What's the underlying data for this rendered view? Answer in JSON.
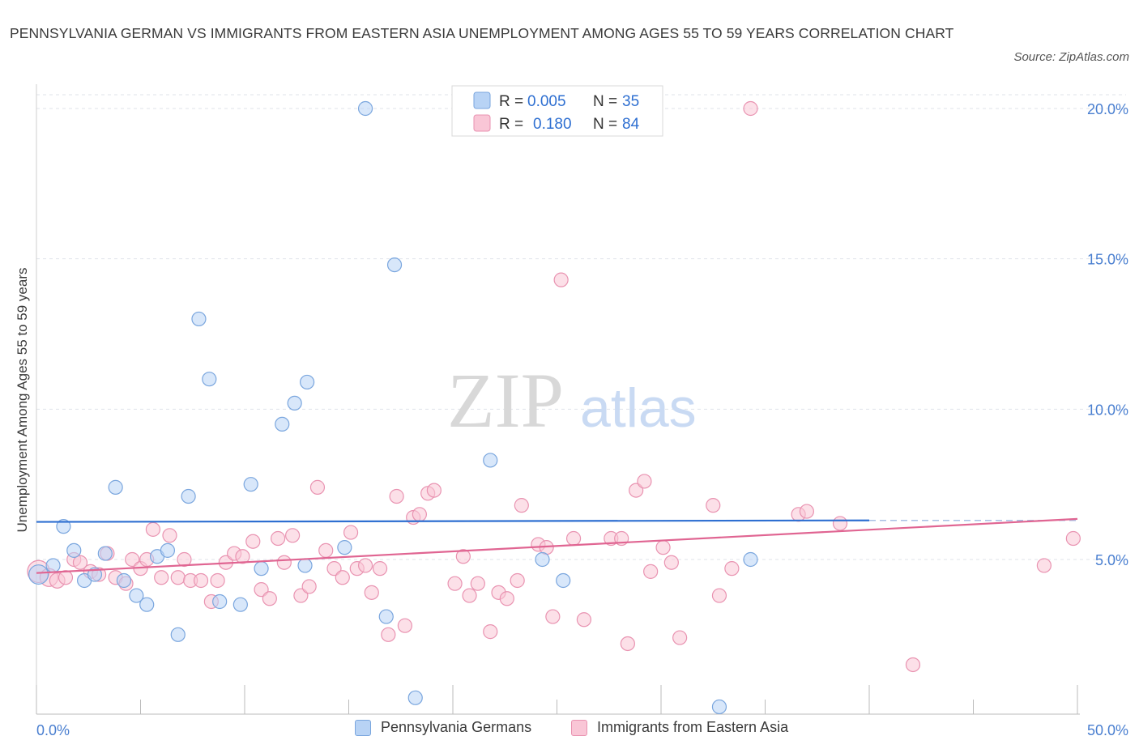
{
  "title": "PENNSYLVANIA GERMAN VS IMMIGRANTS FROM EASTERN ASIA UNEMPLOYMENT AMONG AGES 55 TO 59 YEARS CORRELATION CHART",
  "source": "Source: ZipAtlas.com",
  "watermark": {
    "zip": "ZIP",
    "atlas": "atlas"
  },
  "colors": {
    "blue_fill": "#b8d3f5",
    "blue_stroke": "#7aa6de",
    "blue_line": "#2e6fd1",
    "pink_fill": "#f9c6d6",
    "pink_stroke": "#e993b1",
    "pink_line": "#e06592",
    "tick_label": "#4a7fd0",
    "grid": "#dfe3ea"
  },
  "legend_box": {
    "rows": [
      {
        "r_label": "R =",
        "r_value": "0.005",
        "n_label": "N =",
        "n_value": "35"
      },
      {
        "r_label": "R =",
        "r_value": "0.180",
        "n_label": "N =",
        "n_value": "84"
      }
    ]
  },
  "bottom_legend": {
    "blue": "Pennsylvania Germans",
    "pink": "Immigrants from Eastern Asia"
  },
  "chart_data": {
    "type": "scatter",
    "title": "PENNSYLVANIA GERMAN VS IMMIGRANTS FROM EASTERN ASIA UNEMPLOYMENT AMONG AGES 55 TO 59 YEARS CORRELATION CHART",
    "xlabel": "",
    "ylabel": "Unemployment Among Ages 55 to 59 years",
    "xlim": [
      0,
      50
    ],
    "ylim": [
      0,
      20.5
    ],
    "x_tick_labels": [
      "0.0%",
      "50.0%"
    ],
    "y_ticks": [
      5,
      10,
      15,
      20
    ],
    "y_tick_labels": [
      "5.0%",
      "10.0%",
      "15.0%",
      "20.0%"
    ],
    "series": [
      {
        "name": "Pennsylvania Germans",
        "color": "blue",
        "R": 0.005,
        "N": 35,
        "trend": {
          "x_start": 0,
          "y_start": 6.25,
          "x_end": 40,
          "y_end": 6.3,
          "dashed_to_x": 50
        },
        "points": [
          [
            0.1,
            4.5,
            1.4
          ],
          [
            0.8,
            4.8,
            1
          ],
          [
            1.3,
            6.1,
            1
          ],
          [
            1.8,
            5.3,
            1
          ],
          [
            2.3,
            4.3,
            1
          ],
          [
            2.8,
            4.5,
            1
          ],
          [
            3.3,
            5.2,
            1
          ],
          [
            3.8,
            7.4,
            1
          ],
          [
            4.2,
            4.3,
            1
          ],
          [
            4.8,
            3.8,
            1
          ],
          [
            5.3,
            3.5,
            1
          ],
          [
            5.8,
            5.1,
            1
          ],
          [
            6.3,
            5.3,
            1
          ],
          [
            6.8,
            2.5,
            1
          ],
          [
            7.3,
            7.1,
            1
          ],
          [
            7.8,
            13.0,
            1
          ],
          [
            8.3,
            11.0,
            1
          ],
          [
            8.8,
            3.6,
            1
          ],
          [
            9.8,
            3.5,
            1
          ],
          [
            10.3,
            7.5,
            1
          ],
          [
            10.8,
            4.7,
            1
          ],
          [
            11.8,
            9.5,
            1
          ],
          [
            12.4,
            10.2,
            1
          ],
          [
            12.9,
            4.8,
            1
          ],
          [
            13.0,
            10.9,
            1
          ],
          [
            14.8,
            5.4,
            1
          ],
          [
            15.8,
            20.0,
            1
          ],
          [
            16.8,
            3.1,
            1
          ],
          [
            17.2,
            14.8,
            1
          ],
          [
            18.2,
            0.4,
            1
          ],
          [
            21.8,
            8.3,
            1
          ],
          [
            24.3,
            5.0,
            1
          ],
          [
            25.3,
            4.3,
            1
          ],
          [
            32.8,
            0.1,
            1
          ],
          [
            34.3,
            5.0,
            1
          ]
        ]
      },
      {
        "name": "Immigrants from Eastern Asia",
        "color": "pink",
        "R": 0.18,
        "N": 84,
        "trend": {
          "x_start": 0,
          "y_start": 4.55,
          "x_end": 50,
          "y_end": 6.35
        },
        "points": [
          [
            0.1,
            4.6,
            1.6
          ],
          [
            0.6,
            4.4,
            1.3
          ],
          [
            1.0,
            4.3,
            1.1
          ],
          [
            1.4,
            4.4,
            1
          ],
          [
            1.8,
            5.0,
            1
          ],
          [
            2.1,
            4.9,
            1
          ],
          [
            2.6,
            4.6,
            1
          ],
          [
            3.0,
            4.5,
            1
          ],
          [
            3.4,
            5.2,
            1
          ],
          [
            3.8,
            4.4,
            1
          ],
          [
            4.3,
            4.2,
            1
          ],
          [
            4.6,
            5.0,
            1
          ],
          [
            5.0,
            4.7,
            1
          ],
          [
            5.3,
            5.0,
            1
          ],
          [
            5.6,
            6.0,
            1
          ],
          [
            6.0,
            4.4,
            1
          ],
          [
            6.4,
            5.8,
            1
          ],
          [
            6.8,
            4.4,
            1
          ],
          [
            7.1,
            5.0,
            1
          ],
          [
            7.4,
            4.3,
            1
          ],
          [
            7.9,
            4.3,
            1
          ],
          [
            8.4,
            3.6,
            1
          ],
          [
            8.7,
            4.3,
            1
          ],
          [
            9.1,
            4.9,
            1
          ],
          [
            9.5,
            5.2,
            1
          ],
          [
            9.9,
            5.1,
            1
          ],
          [
            10.4,
            5.6,
            1
          ],
          [
            10.8,
            4.0,
            1
          ],
          [
            11.2,
            3.7,
            1
          ],
          [
            11.6,
            5.7,
            1
          ],
          [
            11.9,
            4.9,
            1
          ],
          [
            12.3,
            5.8,
            1
          ],
          [
            12.7,
            3.8,
            1
          ],
          [
            13.1,
            4.1,
            1
          ],
          [
            13.5,
            7.4,
            1
          ],
          [
            13.9,
            5.3,
            1
          ],
          [
            14.3,
            4.7,
            1
          ],
          [
            14.7,
            4.4,
            1
          ],
          [
            15.1,
            5.9,
            1
          ],
          [
            15.4,
            4.7,
            1
          ],
          [
            15.8,
            4.8,
            1
          ],
          [
            16.1,
            3.9,
            1
          ],
          [
            16.5,
            4.7,
            1
          ],
          [
            16.9,
            2.5,
            1
          ],
          [
            17.3,
            7.1,
            1
          ],
          [
            17.7,
            2.8,
            1
          ],
          [
            18.1,
            6.4,
            1
          ],
          [
            18.4,
            6.5,
            1
          ],
          [
            18.8,
            7.2,
            1
          ],
          [
            19.1,
            7.3,
            1
          ],
          [
            20.1,
            4.2,
            1
          ],
          [
            20.5,
            5.1,
            1
          ],
          [
            20.8,
            3.8,
            1
          ],
          [
            21.2,
            4.2,
            1
          ],
          [
            21.8,
            2.6,
            1
          ],
          [
            22.2,
            3.9,
            1
          ],
          [
            22.6,
            3.7,
            1
          ],
          [
            23.1,
            4.3,
            1
          ],
          [
            23.3,
            6.8,
            1
          ],
          [
            24.1,
            5.5,
            1
          ],
          [
            24.5,
            5.4,
            1
          ],
          [
            24.8,
            3.1,
            1
          ],
          [
            25.2,
            14.3,
            1
          ],
          [
            25.8,
            5.7,
            1
          ],
          [
            26.3,
            3.0,
            1
          ],
          [
            27.6,
            5.7,
            1
          ],
          [
            28.1,
            5.7,
            1
          ],
          [
            28.4,
            2.2,
            1
          ],
          [
            28.8,
            7.3,
            1
          ],
          [
            29.2,
            7.6,
            1
          ],
          [
            29.5,
            4.6,
            1
          ],
          [
            30.1,
            5.4,
            1
          ],
          [
            30.5,
            4.9,
            1
          ],
          [
            30.9,
            2.4,
            1
          ],
          [
            32.5,
            6.8,
            1
          ],
          [
            32.8,
            3.8,
            1
          ],
          [
            33.4,
            4.7,
            1
          ],
          [
            34.3,
            20.0,
            1
          ],
          [
            36.6,
            6.5,
            1
          ],
          [
            37.0,
            6.6,
            1
          ],
          [
            38.6,
            6.2,
            1
          ],
          [
            42.1,
            1.5,
            1
          ],
          [
            48.4,
            4.8,
            1
          ],
          [
            49.8,
            5.7,
            1
          ]
        ]
      }
    ]
  }
}
